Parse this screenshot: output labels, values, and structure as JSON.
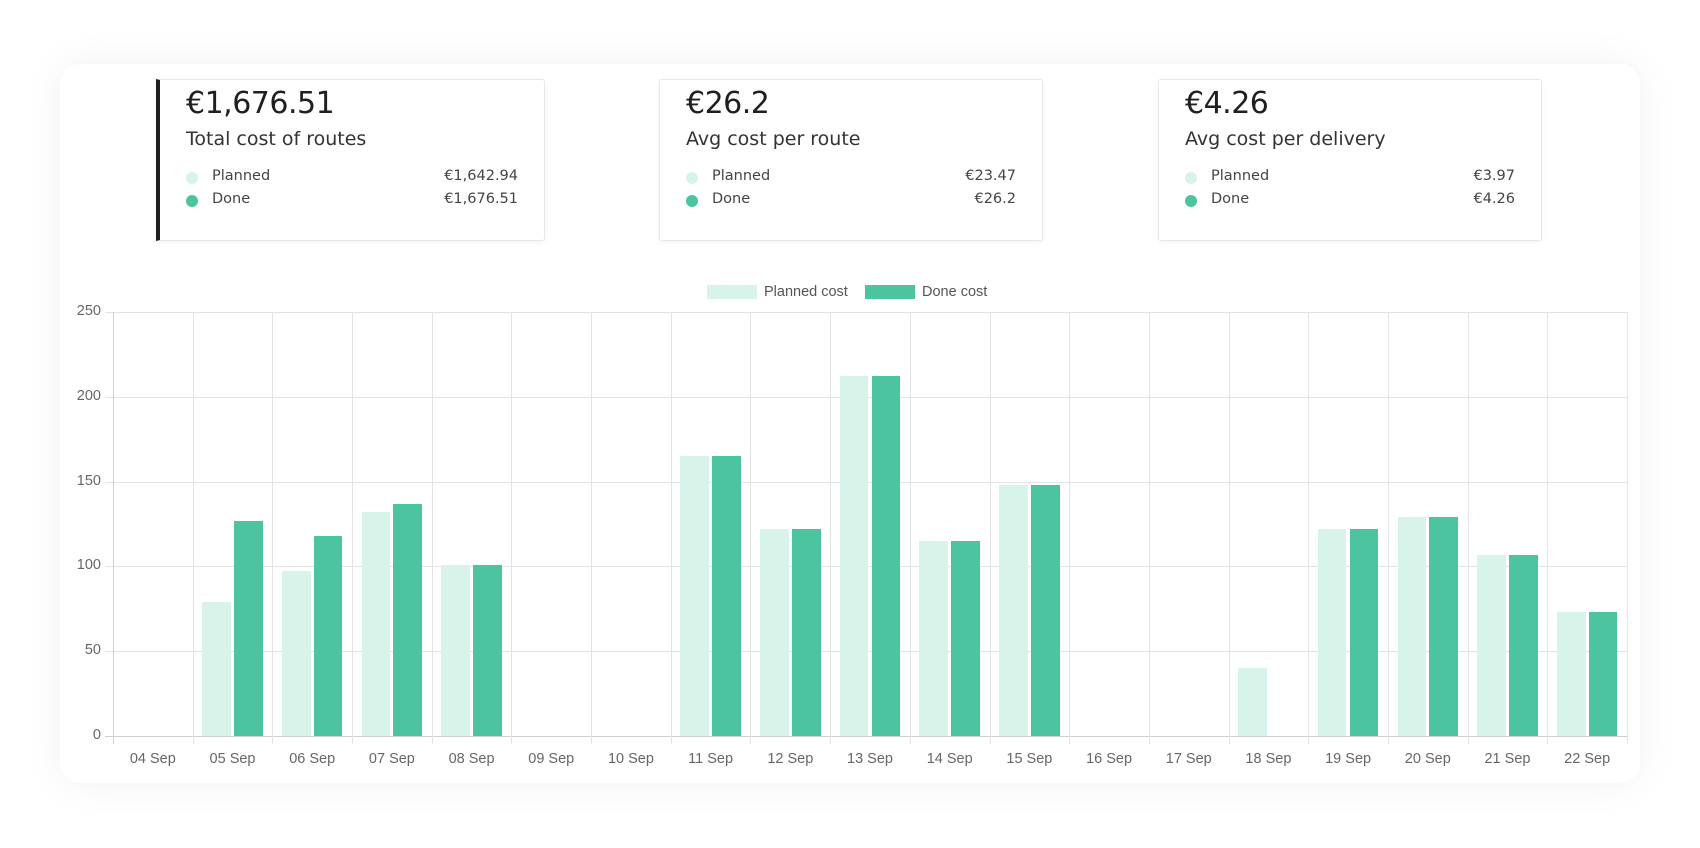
{
  "colors": {
    "planned": "#d8f3ea",
    "done": "#4cc49f",
    "active_border": "#1f1f1f"
  },
  "cards": [
    {
      "value": "€1,676.51",
      "title": "Total cost of routes",
      "active": true,
      "rows": [
        {
          "label": "Planned",
          "value": "€1,642.94",
          "dot": "planned"
        },
        {
          "label": "Done",
          "value": "€1,676.51",
          "dot": "done"
        }
      ]
    },
    {
      "value": "€26.2",
      "title": "Avg cost per route",
      "active": false,
      "rows": [
        {
          "label": "Planned",
          "value": "€23.47",
          "dot": "planned"
        },
        {
          "label": "Done",
          "value": "€26.2",
          "dot": "done"
        }
      ]
    },
    {
      "value": "€4.26",
      "title": "Avg cost per delivery",
      "active": false,
      "rows": [
        {
          "label": "Planned",
          "value": "€3.97",
          "dot": "planned"
        },
        {
          "label": "Done",
          "value": "€4.26",
          "dot": "done"
        }
      ]
    }
  ],
  "chart_data": {
    "type": "bar",
    "title": "",
    "xlabel": "",
    "ylabel": "",
    "ylim": [
      0,
      250
    ],
    "yticks": [
      0,
      50,
      100,
      150,
      200,
      250
    ],
    "grid": true,
    "legend_position": "top",
    "categories": [
      "04 Sep",
      "05 Sep",
      "06 Sep",
      "07 Sep",
      "08 Sep",
      "09 Sep",
      "10 Sep",
      "11 Sep",
      "12 Sep",
      "13 Sep",
      "14 Sep",
      "15 Sep",
      "16 Sep",
      "17 Sep",
      "18 Sep",
      "19 Sep",
      "20 Sep",
      "21 Sep",
      "22 Sep"
    ],
    "series": [
      {
        "name": "Planned cost",
        "color": "#d8f3ea",
        "values": [
          0,
          79,
          97,
          132,
          101,
          0,
          0,
          165,
          122,
          212,
          115,
          148,
          0,
          0,
          40,
          122,
          129,
          107,
          73
        ]
      },
      {
        "name": "Done cost",
        "color": "#4cc49f",
        "values": [
          0,
          127,
          118,
          137,
          101,
          0,
          0,
          165,
          122,
          212,
          115,
          148,
          0,
          0,
          0,
          122,
          129,
          107,
          73
        ]
      }
    ]
  }
}
